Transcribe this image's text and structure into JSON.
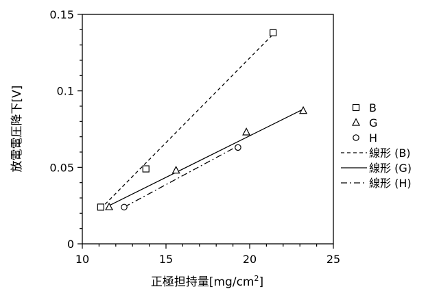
{
  "chart_data": {
    "type": "scatter",
    "xlabel": "正極担持量[mg/cm",
    "xlabel_sup": "2",
    "xlabel_end": "]",
    "ylabel": "放電電圧降下[V]",
    "xlim": [
      10,
      25
    ],
    "ylim": [
      0,
      0.15
    ],
    "x_ticks": [
      "10",
      "15",
      "20",
      "25"
    ],
    "y_ticks": [
      "0",
      "0.05",
      "0.1",
      "0.15"
    ],
    "grid": false,
    "legend_position": "right",
    "series": [
      {
        "name": "B",
        "marker": "square",
        "points": [
          {
            "x": 11.1,
            "y": 0.024
          },
          {
            "x": 13.8,
            "y": 0.049
          },
          {
            "x": 21.4,
            "y": 0.138
          }
        ]
      },
      {
        "name": "G",
        "marker": "triangle",
        "points": [
          {
            "x": 11.6,
            "y": 0.024
          },
          {
            "x": 15.6,
            "y": 0.048
          },
          {
            "x": 19.8,
            "y": 0.073
          },
          {
            "x": 23.2,
            "y": 0.087
          }
        ]
      },
      {
        "name": "H",
        "marker": "circle",
        "points": [
          {
            "x": 12.5,
            "y": 0.024
          },
          {
            "x": 19.3,
            "y": 0.063
          }
        ]
      }
    ],
    "trendlines": [
      {
        "name": "線形 (B)",
        "style": "dashed",
        "from": {
          "x": 11.1,
          "y": 0.023
        },
        "to": {
          "x": 21.4,
          "y": 0.137
        }
      },
      {
        "name": "線形 (G)",
        "style": "solid",
        "from": {
          "x": 11.6,
          "y": 0.025
        },
        "to": {
          "x": 23.2,
          "y": 0.088
        }
      },
      {
        "name": "線形 (H)",
        "style": "dashdot",
        "from": {
          "x": 12.5,
          "y": 0.024
        },
        "to": {
          "x": 19.3,
          "y": 0.064
        }
      }
    ]
  }
}
